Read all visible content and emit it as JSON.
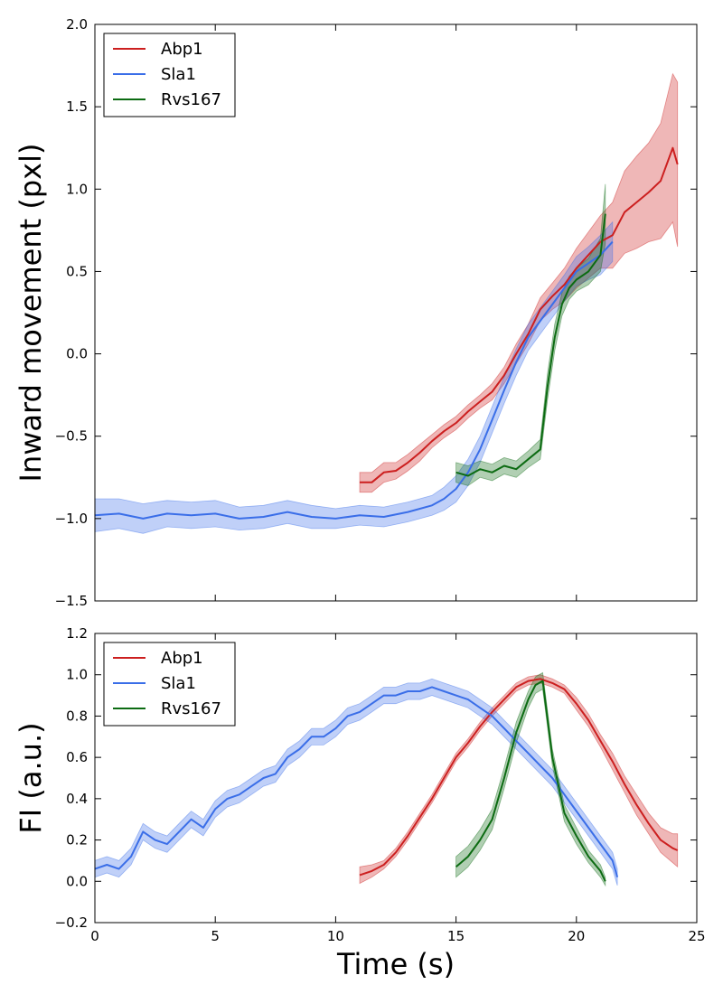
{
  "colors": {
    "Abp1": "#cc1f1f",
    "Sla1": "#3a6ee8",
    "Rvs167": "#0c6b12"
  },
  "chart_data": [
    {
      "type": "line",
      "id": "top",
      "title": "",
      "xlabel": "",
      "ylabel": "Inward movement (pxl)",
      "xlim": [
        0,
        25
      ],
      "ylim": [
        -1.5,
        2.0
      ],
      "xticks": [
        0,
        5,
        10,
        15,
        20,
        25
      ],
      "xtick_labels_visible": false,
      "yticks": [
        -1.5,
        -1.0,
        -0.5,
        0.0,
        0.5,
        1.0,
        1.5,
        2.0
      ],
      "ytick_labels": [
        "−1.5",
        "−1.0",
        "−0.5",
        "0.0",
        "0.5",
        "1.0",
        "1.5",
        "2.0"
      ],
      "grid": false,
      "legend": "top-left",
      "series": [
        {
          "name": "Abp1",
          "x": [
            11.0,
            11.5,
            12.0,
            12.5,
            13.0,
            13.5,
            14.0,
            14.5,
            15.0,
            15.5,
            16.0,
            16.5,
            17.0,
            17.5,
            18.0,
            18.5,
            19.0,
            19.5,
            20.0,
            20.5,
            21.0,
            21.5,
            22.0,
            22.5,
            23.0,
            23.5,
            24.0,
            24.2
          ],
          "y": [
            -0.78,
            -0.78,
            -0.72,
            -0.71,
            -0.66,
            -0.6,
            -0.53,
            -0.47,
            -0.42,
            -0.35,
            -0.29,
            -0.23,
            -0.13,
            0.0,
            0.12,
            0.27,
            0.35,
            0.42,
            0.52,
            0.6,
            0.68,
            0.72,
            0.86,
            0.92,
            0.98,
            1.05,
            1.25,
            1.15
          ],
          "band": [
            0.06,
            0.06,
            0.06,
            0.05,
            0.05,
            0.05,
            0.04,
            0.04,
            0.04,
            0.04,
            0.04,
            0.05,
            0.05,
            0.06,
            0.06,
            0.07,
            0.08,
            0.1,
            0.12,
            0.14,
            0.16,
            0.2,
            0.25,
            0.28,
            0.3,
            0.35,
            0.45,
            0.5
          ]
        },
        {
          "name": "Sla1",
          "x": [
            0,
            1,
            2,
            3,
            4,
            5,
            6,
            7,
            8,
            9,
            10,
            11,
            12,
            13,
            14,
            14.5,
            15,
            15.5,
            16,
            16.5,
            17,
            17.5,
            18,
            18.5,
            19,
            19.5,
            20,
            20.5,
            21,
            21.5
          ],
          "y": [
            -0.98,
            -0.97,
            -1.0,
            -0.97,
            -0.98,
            -0.97,
            -1.0,
            -0.99,
            -0.96,
            -0.99,
            -1.0,
            -0.98,
            -0.99,
            -0.96,
            -0.92,
            -0.88,
            -0.82,
            -0.72,
            -0.58,
            -0.4,
            -0.22,
            -0.05,
            0.1,
            0.2,
            0.3,
            0.4,
            0.5,
            0.55,
            0.6,
            0.68
          ],
          "band": [
            0.1,
            0.09,
            0.09,
            0.08,
            0.08,
            0.08,
            0.07,
            0.07,
            0.07,
            0.07,
            0.06,
            0.06,
            0.06,
            0.06,
            0.06,
            0.07,
            0.08,
            0.08,
            0.08,
            0.08,
            0.08,
            0.08,
            0.08,
            0.08,
            0.08,
            0.08,
            0.09,
            0.1,
            0.12,
            0.12
          ]
        },
        {
          "name": "Rvs167",
          "x": [
            15.0,
            15.5,
            16.0,
            16.5,
            17.0,
            17.5,
            18.0,
            18.5,
            18.8,
            19.1,
            19.4,
            19.7,
            20.0,
            20.5,
            21.0,
            21.2
          ],
          "y": [
            -0.72,
            -0.74,
            -0.7,
            -0.72,
            -0.68,
            -0.7,
            -0.64,
            -0.58,
            -0.2,
            0.1,
            0.3,
            0.4,
            0.45,
            0.5,
            0.6,
            0.85
          ],
          "band": [
            0.06,
            0.06,
            0.05,
            0.05,
            0.05,
            0.05,
            0.05,
            0.06,
            0.08,
            0.08,
            0.07,
            0.07,
            0.07,
            0.08,
            0.1,
            0.18
          ]
        }
      ]
    },
    {
      "type": "line",
      "id": "bottom",
      "title": "",
      "xlabel": "Time (s)",
      "ylabel": "FI (a.u.)",
      "xlim": [
        0,
        25
      ],
      "ylim": [
        -0.2,
        1.2
      ],
      "xticks": [
        0,
        5,
        10,
        15,
        20,
        25
      ],
      "xtick_labels": [
        "0",
        "5",
        "10",
        "15",
        "20",
        "25"
      ],
      "yticks": [
        -0.2,
        0.0,
        0.2,
        0.4,
        0.6,
        0.8,
        1.0,
        1.2
      ],
      "ytick_labels": [
        "−0.2",
        "0.0",
        "0.2",
        "0.4",
        "0.6",
        "0.8",
        "1.0",
        "1.2"
      ],
      "grid": false,
      "legend": "top-left",
      "series": [
        {
          "name": "Abp1",
          "x": [
            11.0,
            11.5,
            12.0,
            12.5,
            13.0,
            13.5,
            14.0,
            14.5,
            15.0,
            15.5,
            16.0,
            16.5,
            17.0,
            17.5,
            18.0,
            18.5,
            19.0,
            19.5,
            20.0,
            20.5,
            21.0,
            21.5,
            22.0,
            22.5,
            23.0,
            23.5,
            24.0,
            24.2
          ],
          "y": [
            0.03,
            0.05,
            0.08,
            0.14,
            0.22,
            0.31,
            0.4,
            0.5,
            0.6,
            0.67,
            0.75,
            0.82,
            0.88,
            0.94,
            0.97,
            0.98,
            0.96,
            0.93,
            0.86,
            0.78,
            0.68,
            0.58,
            0.47,
            0.37,
            0.28,
            0.2,
            0.16,
            0.15
          ],
          "band": [
            0.04,
            0.03,
            0.02,
            0.02,
            0.02,
            0.02,
            0.02,
            0.02,
            0.02,
            0.02,
            0.02,
            0.02,
            0.02,
            0.02,
            0.02,
            0.02,
            0.02,
            0.02,
            0.03,
            0.03,
            0.03,
            0.04,
            0.04,
            0.05,
            0.05,
            0.06,
            0.07,
            0.08
          ]
        },
        {
          "name": "Sla1",
          "x": [
            0,
            0.5,
            1,
            1.5,
            2,
            2.5,
            3,
            3.5,
            4,
            4.5,
            5,
            5.5,
            6,
            6.5,
            7,
            7.5,
            8,
            8.5,
            9,
            9.5,
            10,
            10.5,
            11,
            11.5,
            12,
            12.5,
            13,
            13.5,
            14,
            14.5,
            15,
            15.5,
            16,
            16.5,
            17,
            17.5,
            18,
            18.5,
            19,
            19.5,
            20,
            20.5,
            21,
            21.5,
            21.7
          ],
          "y": [
            0.06,
            0.08,
            0.06,
            0.12,
            0.24,
            0.2,
            0.18,
            0.24,
            0.3,
            0.26,
            0.35,
            0.4,
            0.42,
            0.46,
            0.5,
            0.52,
            0.6,
            0.64,
            0.7,
            0.7,
            0.74,
            0.8,
            0.82,
            0.86,
            0.9,
            0.9,
            0.92,
            0.92,
            0.94,
            0.92,
            0.9,
            0.88,
            0.84,
            0.8,
            0.74,
            0.68,
            0.62,
            0.56,
            0.5,
            0.42,
            0.34,
            0.26,
            0.18,
            0.1,
            0.02
          ],
          "band": [
            0.04,
            0.04,
            0.04,
            0.04,
            0.04,
            0.04,
            0.04,
            0.04,
            0.04,
            0.04,
            0.04,
            0.04,
            0.04,
            0.04,
            0.04,
            0.04,
            0.04,
            0.04,
            0.04,
            0.04,
            0.04,
            0.04,
            0.04,
            0.04,
            0.04,
            0.04,
            0.04,
            0.04,
            0.04,
            0.04,
            0.04,
            0.04,
            0.04,
            0.04,
            0.04,
            0.04,
            0.04,
            0.04,
            0.04,
            0.04,
            0.04,
            0.04,
            0.04,
            0.04,
            0.04
          ]
        },
        {
          "name": "Rvs167",
          "x": [
            15.0,
            15.5,
            16.0,
            16.5,
            17.0,
            17.5,
            18.0,
            18.3,
            18.6,
            19.0,
            19.5,
            20.0,
            20.5,
            21.0,
            21.2
          ],
          "y": [
            0.07,
            0.12,
            0.2,
            0.3,
            0.5,
            0.72,
            0.88,
            0.95,
            0.97,
            0.6,
            0.33,
            0.22,
            0.12,
            0.05,
            0.0
          ],
          "band": [
            0.05,
            0.05,
            0.05,
            0.05,
            0.05,
            0.05,
            0.04,
            0.04,
            0.04,
            0.04,
            0.04,
            0.04,
            0.03,
            0.03,
            0.02
          ]
        }
      ]
    }
  ]
}
